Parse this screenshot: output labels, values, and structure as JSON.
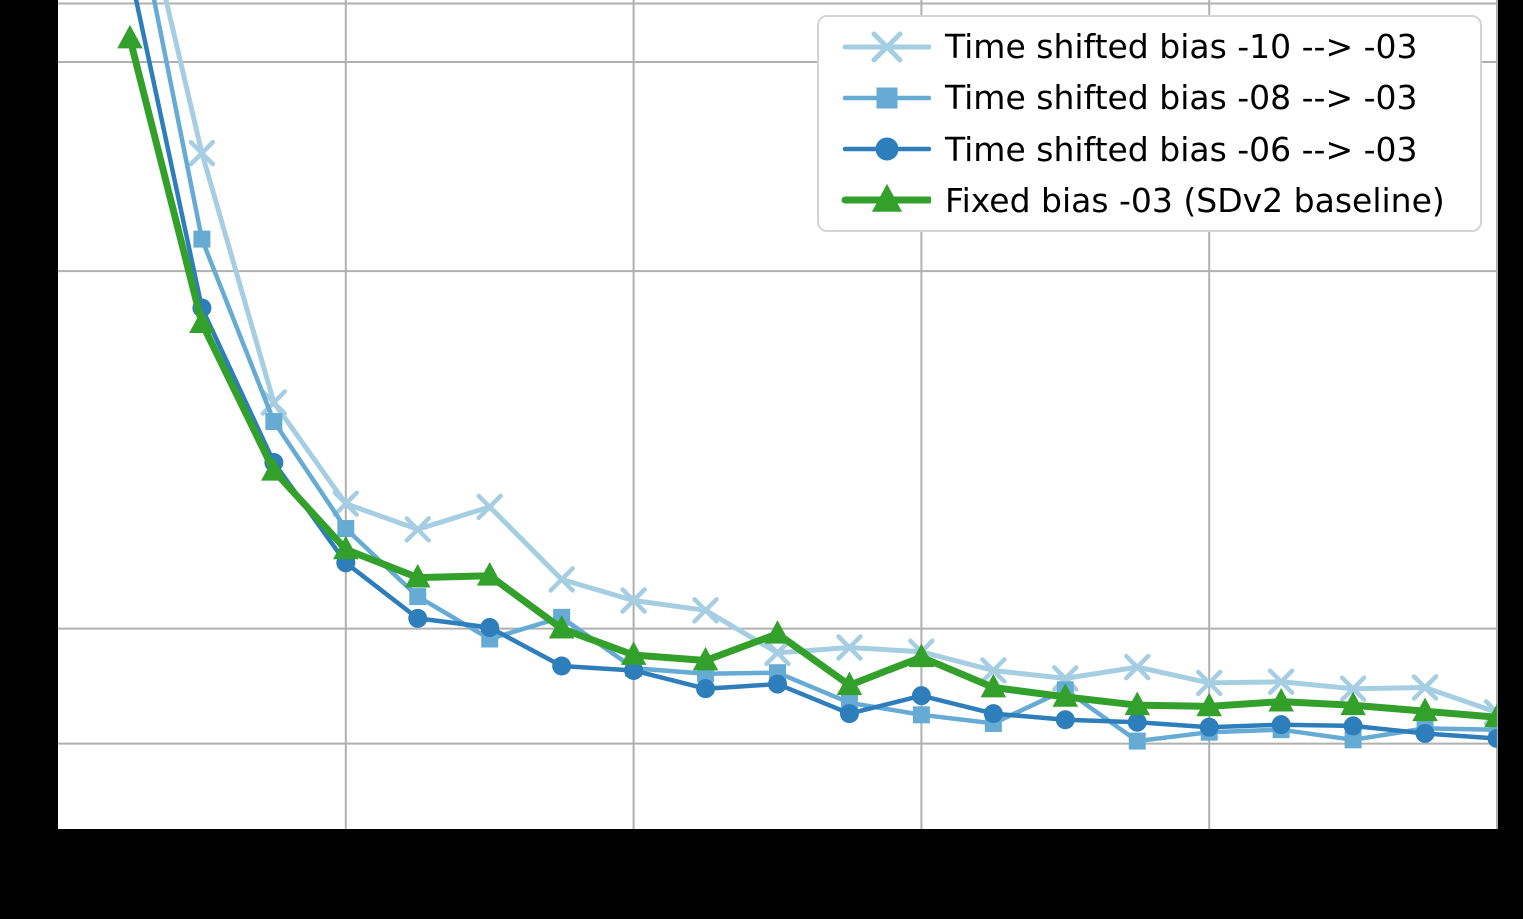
{
  "figure": {
    "background_color": "#000000",
    "plot_background_color": "#ffffff",
    "grid_color": "#b0b0b0",
    "title": "",
    "xlabel": "",
    "ylabel": ""
  },
  "chart_data": {
    "type": "line",
    "title": "",
    "xlabel": "",
    "ylabel": "",
    "axis_tick_labels_visible": false,
    "x": [
      1,
      2,
      3,
      4,
      5,
      6,
      7,
      8,
      9,
      10,
      11,
      12,
      13,
      14,
      15,
      16,
      17,
      18,
      19,
      20
    ],
    "axes": {
      "x": {
        "min": 0,
        "max": 20,
        "gridlines": [
          4,
          8,
          12,
          16,
          20
        ]
      },
      "y": {
        "scale": "log",
        "min": 0.0339,
        "max": 0.1685,
        "gridlines": [
          0.168,
          0.15,
          0.1,
          0.05,
          0.04
        ]
      }
    },
    "legend_position": "upper right",
    "series": [
      {
        "name": "time-shifted-bias-10",
        "label": "Time shifted bias -10 --> -03",
        "color": "#a6cee3",
        "marker": "x",
        "line_width": 5,
        "marker_size": 22,
        "values": [
          0.228,
          0.1257,
          0.0775,
          0.0637,
          0.0606,
          0.0633,
          0.055,
          0.0528,
          0.0518,
          0.0477,
          0.0482,
          0.0478,
          0.0461,
          0.0454,
          0.0464,
          0.045,
          0.0451,
          0.0445,
          0.0446,
          0.0425
        ]
      },
      {
        "name": "time-shifted-bias-08",
        "label": "Time shifted bias -08 --> -03",
        "color": "#66abd4",
        "marker": "square",
        "line_width": 4.5,
        "marker_size": 17,
        "values": [
          0.214,
          0.1064,
          0.0747,
          0.0607,
          0.0532,
          0.049,
          0.0511,
          0.0463,
          0.0458,
          0.0459,
          0.0433,
          0.0423,
          0.0416,
          0.0444,
          0.0402,
          0.0409,
          0.0411,
          0.0403,
          0.0412,
          0.0411
        ]
      },
      {
        "name": "time-shifted-bias-06",
        "label": "Time shifted bias -06 --> -03",
        "color": "#2e7ebc",
        "marker": "circle",
        "line_width": 4.5,
        "marker_size": 19,
        "values": [
          0.179,
          0.0931,
          0.069,
          0.0568,
          0.051,
          0.0501,
          0.0465,
          0.0461,
          0.0445,
          0.0449,
          0.0424,
          0.0439,
          0.0424,
          0.0419,
          0.0417,
          0.0413,
          0.0415,
          0.0414,
          0.0408,
          0.0404
        ]
      },
      {
        "name": "fixed-bias-baseline",
        "label": "Fixed bias -03 (SDv2 baseline)",
        "color": "#33a02c",
        "marker": "triangle-up",
        "line_width": 7,
        "marker_size": 22,
        "values": [
          0.157,
          0.0904,
          0.0679,
          0.0583,
          0.0552,
          0.0554,
          0.05,
          0.0475,
          0.047,
          0.0495,
          0.0448,
          0.0473,
          0.0446,
          0.0438,
          0.0431,
          0.043,
          0.0434,
          0.0431,
          0.0426,
          0.0421
        ]
      }
    ]
  }
}
